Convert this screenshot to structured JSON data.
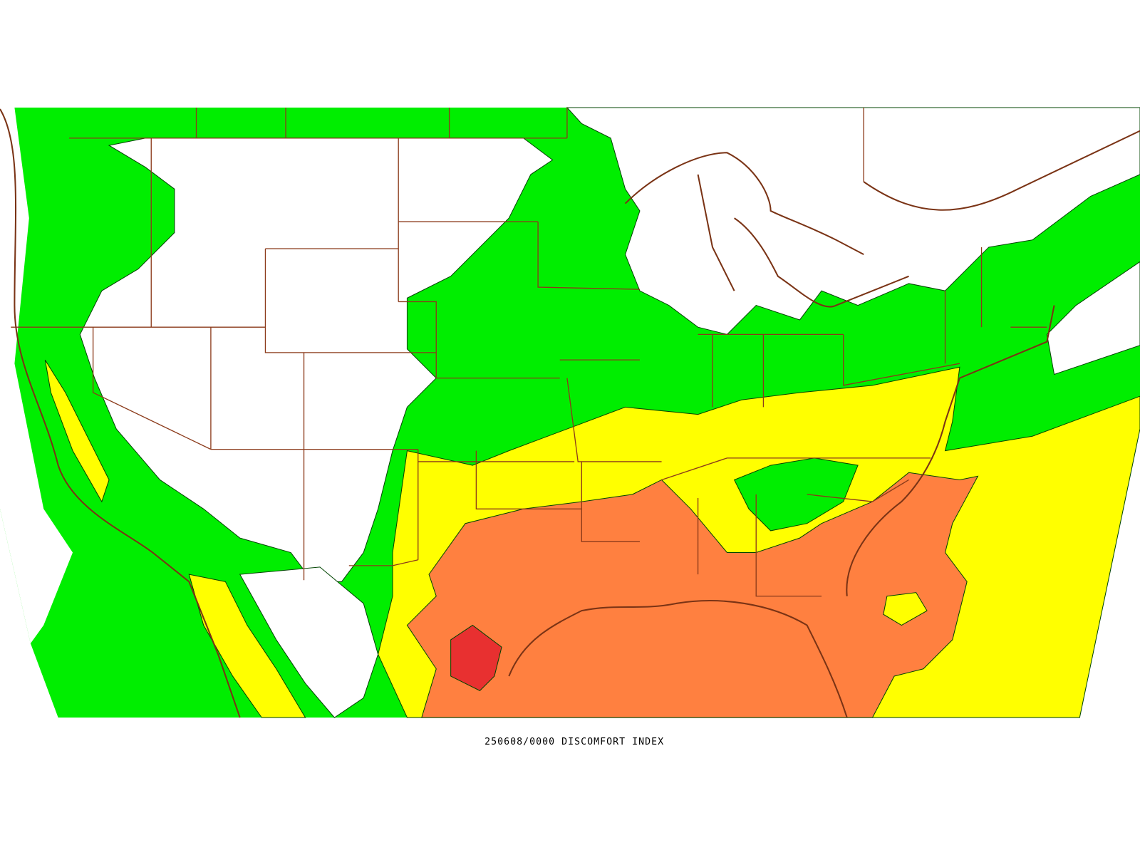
{
  "title": "250608/0000 DISCOMFORT INDEX"
}
